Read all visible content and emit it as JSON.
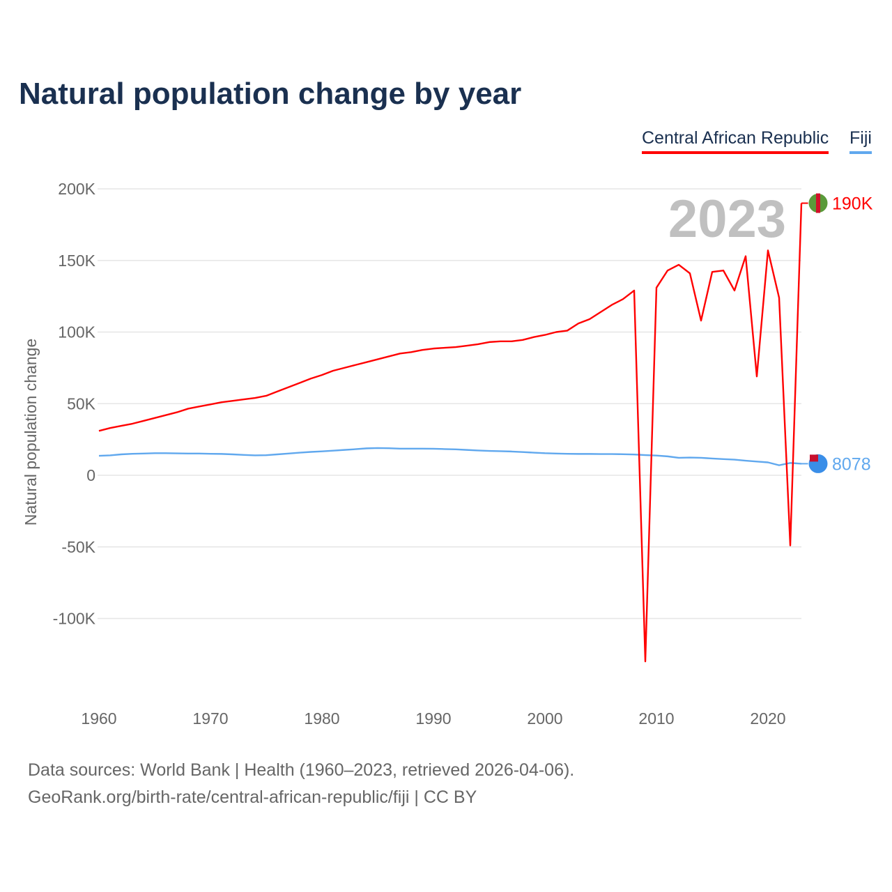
{
  "title": "Natural population change by year",
  "legend": [
    "Central African Republic",
    "Fiji"
  ],
  "year_label": "2023",
  "footer": {
    "line1": "Data sources: World Bank | Health (1960–2023, retrieved 2026-04-06).",
    "line2": "GeoRank.org/birth-rate/central-african-republic/fiji | CC BY"
  },
  "chart_data": {
    "type": "line",
    "title": "Natural population change by year",
    "xlabel": "",
    "ylabel": "Natural population change",
    "xlim": [
      1960,
      2023
    ],
    "ylim": [
      -130000,
      200000
    ],
    "grid": true,
    "legend_position": "top-right",
    "y_ticks": [
      200000,
      150000,
      100000,
      50000,
      0,
      -50000,
      -100000
    ],
    "y_tick_labels": [
      "200K",
      "150K",
      "100K",
      "50K",
      "0",
      "-50K",
      "-100K"
    ],
    "x_ticks": [
      1960,
      1970,
      1980,
      1990,
      2000,
      2010,
      2020
    ],
    "x_tick_labels": [
      "1960",
      "1970",
      "1980",
      "1990",
      "2000",
      "2010",
      "2020"
    ],
    "series": [
      {
        "name": "Central African Republic",
        "color": "#ff0000",
        "end_label": "190K",
        "x_start": 1960,
        "values": [
          31000,
          33000,
          34500,
          36000,
          38000,
          40000,
          42000,
          44000,
          46500,
          48000,
          49500,
          51000,
          52000,
          53000,
          54000,
          55500,
          58500,
          61500,
          64500,
          67500,
          70000,
          73000,
          75000,
          77000,
          79000,
          81000,
          83000,
          85000,
          86000,
          87500,
          88500,
          89000,
          89500,
          90500,
          91500,
          93000,
          93500,
          93500,
          94500,
          96500,
          98000,
          100000,
          101000,
          106000,
          109000,
          114000,
          119000,
          123000,
          129000,
          -130000,
          131000,
          143000,
          147000,
          141000,
          108000,
          142000,
          143000,
          129000,
          153000,
          69000,
          157000,
          124000,
          -49000,
          190000
        ]
      },
      {
        "name": "Fiji",
        "color": "#60a8ee",
        "end_label": "8078",
        "x_start": 1960,
        "values": [
          13600,
          13900,
          14600,
          15000,
          15200,
          15400,
          15400,
          15300,
          15200,
          15200,
          15000,
          14900,
          14600,
          14200,
          13900,
          14000,
          14600,
          15200,
          15800,
          16300,
          16700,
          17200,
          17700,
          18200,
          18800,
          19000,
          18900,
          18600,
          18600,
          18600,
          18500,
          18300,
          18100,
          17700,
          17300,
          17000,
          16800,
          16600,
          16200,
          15800,
          15400,
          15200,
          15000,
          14900,
          14900,
          14800,
          14800,
          14700,
          14500,
          14100,
          13800,
          13200,
          12200,
          12400,
          12200,
          11700,
          11300,
          10900,
          10200,
          9600,
          9000,
          7000,
          8600,
          8078
        ]
      }
    ]
  }
}
